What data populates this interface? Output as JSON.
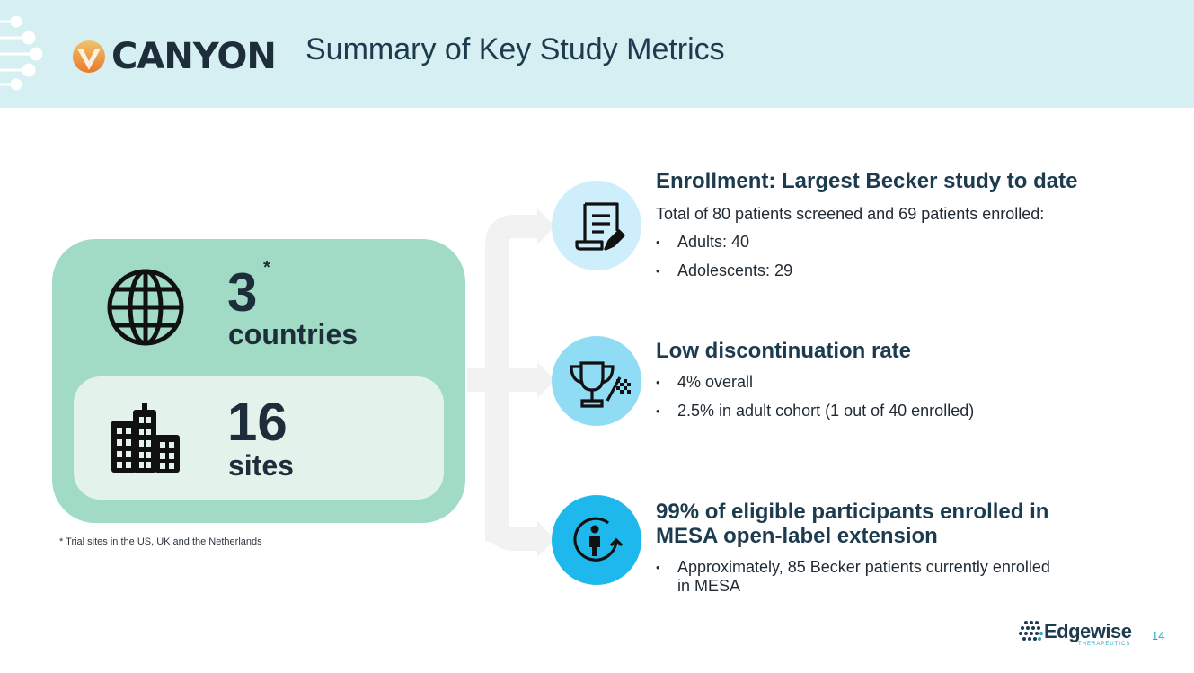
{
  "header": {
    "brand": "CANYON",
    "title": "Summary of Key Study Metrics"
  },
  "metrics": {
    "countries": {
      "number": "3",
      "asterisk": "*",
      "label": "countries"
    },
    "sites": {
      "number": "16",
      "label": "sites"
    },
    "footnote": "* Trial sites in the US, UK and the Netherlands"
  },
  "sections": {
    "enrollment": {
      "icon": "document-edit-icon",
      "title": "Enrollment:  Largest Becker study to date",
      "intro": "Total of 80 patients screened and 69 patients enrolled:",
      "bullets": [
        "Adults: 40",
        "Adolescents: 29"
      ]
    },
    "discontinuation": {
      "icon": "trophy-icon",
      "title": "Low discontinuation rate",
      "bullets": [
        "4% overall",
        "2.5% in adult cohort (1 out of 40 enrolled)"
      ]
    },
    "mesa": {
      "icon": "person-rotate-icon",
      "title_line1": "99% of eligible participants enrolled in",
      "title_line2": "MESA open-label extension",
      "bullets": [
        "Approximately, 85 Becker patients currently enrolled",
        "in MESA"
      ]
    }
  },
  "footer": {
    "company": "Edgewise",
    "company_sub": "THERAPEUTICS",
    "page": "14"
  },
  "colors": {
    "header_bg": "#d5eff2",
    "green": "#a1dbc6",
    "light_green": "#e3f3ec",
    "circle1": "#cdeefa",
    "circle2": "#8fdcf4",
    "circle3": "#1fb8ec",
    "accent": "#2ba9c6"
  }
}
